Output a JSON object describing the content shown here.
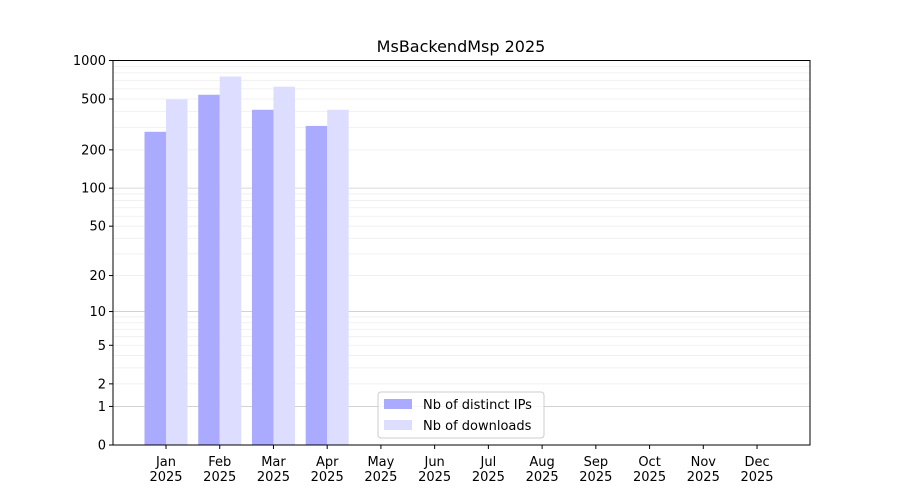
{
  "chart_data": {
    "type": "bar",
    "title": "MsBackendMsp 2025",
    "xlabel": "",
    "ylabel": "",
    "yscale": "log10(1+y)",
    "ylim": [
      0,
      1000
    ],
    "yticks": [
      0,
      1,
      2,
      5,
      10,
      20,
      50,
      100,
      200,
      500,
      1000
    ],
    "grid": true,
    "legend_position": "lower-center",
    "categories": [
      "Jan\n2025",
      "Feb\n2025",
      "Mar\n2025",
      "Apr\n2025",
      "May\n2025",
      "Jun\n2025",
      "Jul\n2025",
      "Aug\n2025",
      "Sep\n2025",
      "Oct\n2025",
      "Nov\n2025",
      "Dec\n2025"
    ],
    "series": [
      {
        "name": "Nb of distinct IPs",
        "color": "#aaaaff",
        "values": [
          277,
          540,
          412,
          308,
          null,
          null,
          null,
          null,
          null,
          null,
          null,
          null
        ]
      },
      {
        "name": "Nb of downloads",
        "color": "#ddddff",
        "values": [
          497,
          750,
          624,
          412,
          null,
          null,
          null,
          null,
          null,
          null,
          null,
          null
        ]
      }
    ]
  }
}
